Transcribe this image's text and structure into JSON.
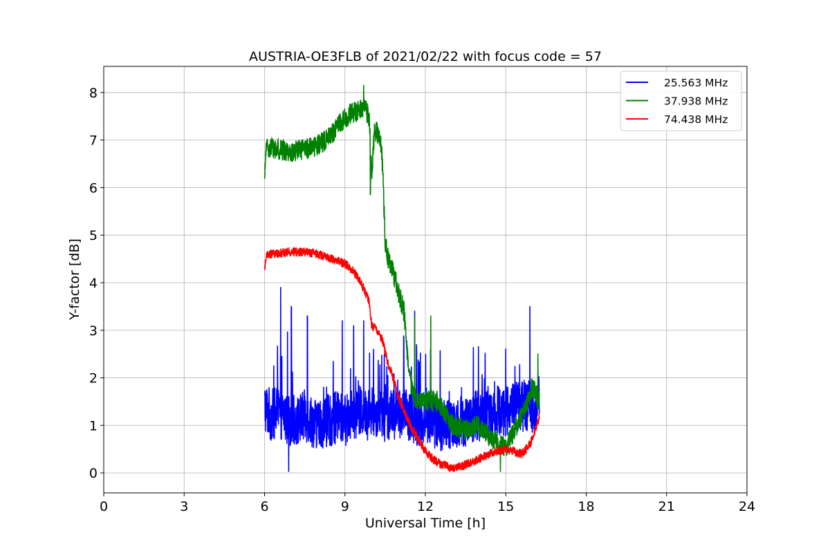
{
  "chart_data": {
    "type": "line",
    "title": "AUSTRIA-OE3FLB of 2021/02/22 with focus code = 57",
    "xlabel": "Universal Time [h]",
    "ylabel": "Y-factor [dB]",
    "xlim": [
      0,
      24
    ],
    "ylim": [
      -0.42,
      8.55
    ],
    "xticks": [
      0,
      3,
      6,
      9,
      12,
      15,
      18,
      21,
      24
    ],
    "yticks": [
      0,
      1,
      2,
      3,
      4,
      5,
      6,
      7,
      8
    ],
    "grid": true,
    "legend_position": "top-right",
    "series": [
      {
        "name": "25.563 MHz",
        "color": "#0000ff",
        "x": [
          6.0,
          6.25,
          6.5,
          6.75,
          7.0,
          7.25,
          7.5,
          7.75,
          8.0,
          8.25,
          8.5,
          8.75,
          9.0,
          9.25,
          9.5,
          9.75,
          10.0,
          10.25,
          10.5,
          10.75,
          11.0,
          11.25,
          11.5,
          11.75,
          12.0,
          12.25,
          12.5,
          12.75,
          13.0,
          13.25,
          13.5,
          13.75,
          14.0,
          14.25,
          14.5,
          14.75,
          15.0,
          15.25,
          15.5,
          15.75,
          16.0,
          16.25
        ],
        "y": [
          1.4,
          1.2,
          1.3,
          1.2,
          1.1,
          1.1,
          1.2,
          1.1,
          1.0,
          1.1,
          1.1,
          1.2,
          1.1,
          1.2,
          1.3,
          1.2,
          1.3,
          1.3,
          1.2,
          1.2,
          1.3,
          1.2,
          1.2,
          1.1,
          1.1,
          1.1,
          1.0,
          1.0,
          1.0,
          1.1,
          1.1,
          1.2,
          1.2,
          1.3,
          1.3,
          1.3,
          1.3,
          1.4,
          1.4,
          1.4,
          1.4,
          1.4
        ],
        "noise": 0.55,
        "spikes": [
          [
            6.6,
            3.9
          ],
          [
            7.0,
            3.5
          ],
          [
            7.6,
            3.3
          ],
          [
            8.9,
            3.2
          ],
          [
            9.7,
            3.2
          ],
          [
            11.6,
            3.4
          ],
          [
            15.9,
            3.5
          ],
          [
            6.9,
            0.02
          ]
        ]
      },
      {
        "name": "37.938 MHz",
        "color": "#008000",
        "x": [
          6.0,
          6.05,
          6.1,
          6.3,
          6.6,
          7.0,
          7.5,
          8.0,
          8.3,
          8.6,
          8.9,
          9.2,
          9.5,
          9.7,
          9.9,
          10.0,
          10.1,
          10.3,
          10.4,
          10.5,
          10.6,
          10.8,
          11.0,
          11.2,
          11.4,
          11.6,
          12.0,
          12.5,
          13.0,
          13.5,
          14.0,
          14.5,
          15.0,
          15.5,
          16.0,
          16.25
        ],
        "y": [
          6.1,
          6.8,
          6.85,
          6.85,
          6.8,
          6.75,
          6.8,
          6.9,
          7.0,
          7.2,
          7.4,
          7.55,
          7.6,
          7.7,
          7.5,
          6.3,
          7.2,
          7.1,
          6.5,
          4.9,
          4.5,
          4.2,
          3.8,
          3.4,
          2.0,
          1.6,
          1.5,
          1.5,
          1.0,
          0.9,
          1.0,
          0.7,
          0.55,
          1.1,
          1.8,
          1.5
        ],
        "noise": 0.22,
        "spikes": [
          [
            9.7,
            8.15
          ],
          [
            9.95,
            5.85
          ],
          [
            11.6,
            3.3
          ],
          [
            12.2,
            3.3
          ],
          [
            14.8,
            0.02
          ],
          [
            16.2,
            2.5
          ]
        ]
      },
      {
        "name": "74.438 MHz",
        "color": "#ff0000",
        "x": [
          6.0,
          6.05,
          6.2,
          6.5,
          7.0,
          7.5,
          8.0,
          8.5,
          9.0,
          9.3,
          9.6,
          9.9,
          10.0,
          10.2,
          10.4,
          10.6,
          10.8,
          11.0,
          11.2,
          11.4,
          11.6,
          11.8,
          12.0,
          12.3,
          12.6,
          13.0,
          13.4,
          13.8,
          14.2,
          14.6,
          15.0,
          15.3,
          15.6,
          15.9,
          16.1,
          16.25
        ],
        "y": [
          4.25,
          4.55,
          4.6,
          4.62,
          4.65,
          4.65,
          4.6,
          4.5,
          4.4,
          4.25,
          4.0,
          3.6,
          3.1,
          3.0,
          2.8,
          2.3,
          2.0,
          1.6,
          1.3,
          1.05,
          0.85,
          0.65,
          0.45,
          0.28,
          0.18,
          0.1,
          0.15,
          0.25,
          0.35,
          0.45,
          0.5,
          0.45,
          0.4,
          0.6,
          0.9,
          1.2
        ],
        "noise": 0.09,
        "spikes": []
      }
    ]
  }
}
